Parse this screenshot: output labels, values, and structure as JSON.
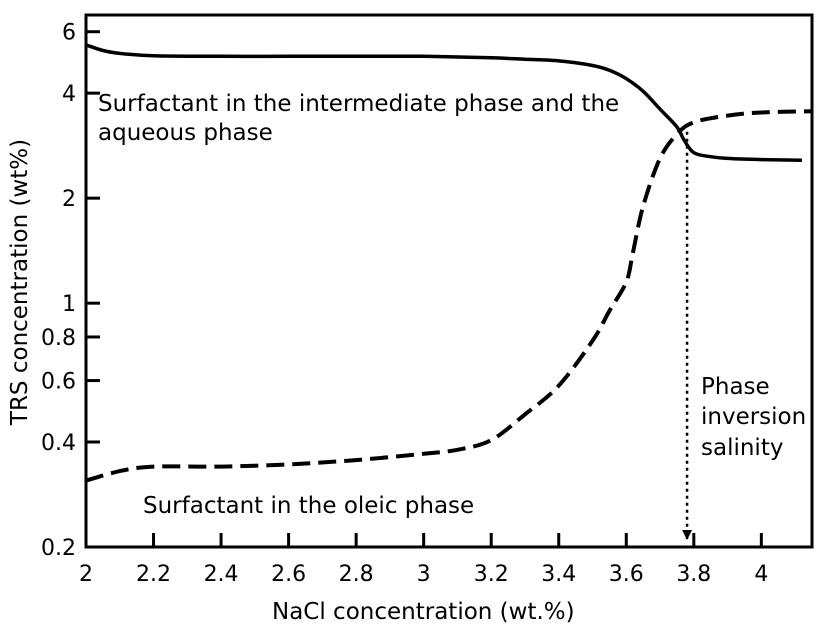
{
  "chart_data": {
    "type": "line",
    "xlabel": "NaCl concentration (wt.%)",
    "ylabel": "TRS concentration (wt%)",
    "y_scale": "log",
    "xlim": [
      2.0,
      4.15
    ],
    "ylim": [
      0.2,
      6.7
    ],
    "x_ticks": [
      2,
      2.2,
      2.4,
      2.6,
      2.8,
      3,
      3.2,
      3.4,
      3.6,
      3.8,
      4
    ],
    "x_tick_labels": [
      "2",
      "2.2",
      "2.4",
      "2.6",
      "2.8",
      "3",
      "3.2",
      "3.4",
      "3.6",
      "3.8",
      "4"
    ],
    "y_ticks": [
      0.2,
      0.4,
      0.6,
      0.8,
      1,
      2,
      4,
      6
    ],
    "y_tick_labels": [
      "0.2",
      "0.4",
      "0.6",
      "0.8",
      "1",
      "2",
      "4",
      "6"
    ],
    "grid": false,
    "series": [
      {
        "name": "Surfactant in the intermediate phase and the aqueous phase",
        "style": "solid",
        "x": [
          2.0,
          2.05,
          2.1,
          2.2,
          2.4,
          2.6,
          2.8,
          3.0,
          3.2,
          3.3,
          3.4,
          3.5,
          3.55,
          3.6,
          3.65,
          3.7,
          3.75,
          3.77,
          3.8,
          3.85,
          3.9,
          4.0,
          4.12
        ],
        "y": [
          5.5,
          5.3,
          5.2,
          5.12,
          5.1,
          5.1,
          5.1,
          5.1,
          5.05,
          5.0,
          4.95,
          4.8,
          4.65,
          4.4,
          4.05,
          3.6,
          3.2,
          2.95,
          2.7,
          2.63,
          2.6,
          2.58,
          2.57
        ]
      },
      {
        "name": "Surfactant in the oleic phase",
        "style": "dashed",
        "x": [
          2.0,
          2.1,
          2.2,
          2.4,
          2.6,
          2.8,
          3.0,
          3.1,
          3.2,
          3.3,
          3.4,
          3.5,
          3.55,
          3.6,
          3.62,
          3.65,
          3.7,
          3.75,
          3.8,
          3.9,
          4.0,
          4.15
        ],
        "y": [
          0.31,
          0.33,
          0.34,
          0.34,
          0.345,
          0.355,
          0.37,
          0.38,
          0.405,
          0.48,
          0.58,
          0.78,
          0.95,
          1.15,
          1.4,
          1.9,
          2.6,
          3.05,
          3.3,
          3.45,
          3.52,
          3.55
        ]
      }
    ],
    "annotations": {
      "upper_label_line1": "Surfactant in the intermediate phase and the",
      "upper_label_line2": "aqueous phase",
      "lower_label": "Surfactant in the oleic phase",
      "pis_line1": "Phase",
      "pis_line2": "inversion",
      "pis_line3": "salinity",
      "pis_x": 3.78
    }
  }
}
